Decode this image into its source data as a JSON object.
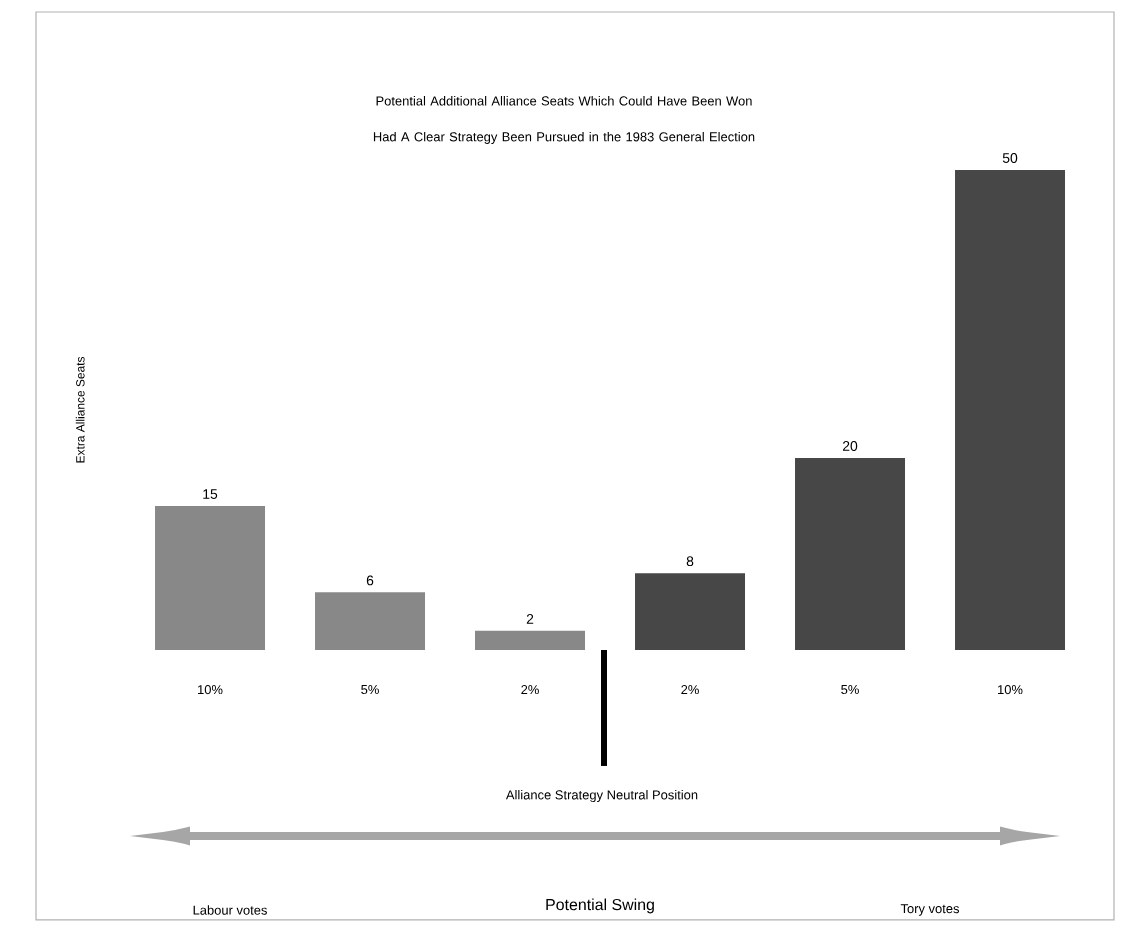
{
  "chart_data": {
    "type": "bar",
    "title": "Potential Additional Alliance Seats Which Could Have Been Won Had A Clear Strategy Been Pursued in the 1983 General Election",
    "ylabel": "Extra Alliance Seats",
    "categories": [
      "10%",
      "5%",
      "2%",
      "2%",
      "5%",
      "10%"
    ],
    "values": [
      15,
      6,
      2,
      8,
      20,
      50
    ],
    "colors": [
      "#888888",
      "#888888",
      "#888888",
      "#474747",
      "#474747",
      "#474747"
    ],
    "ylim": [
      0,
      50
    ],
    "data_labels": true,
    "annotations": [
      "Alliance Strategy Neutral Position",
      "Labour votes",
      "Tory votes",
      "Potential Swing"
    ]
  }
}
